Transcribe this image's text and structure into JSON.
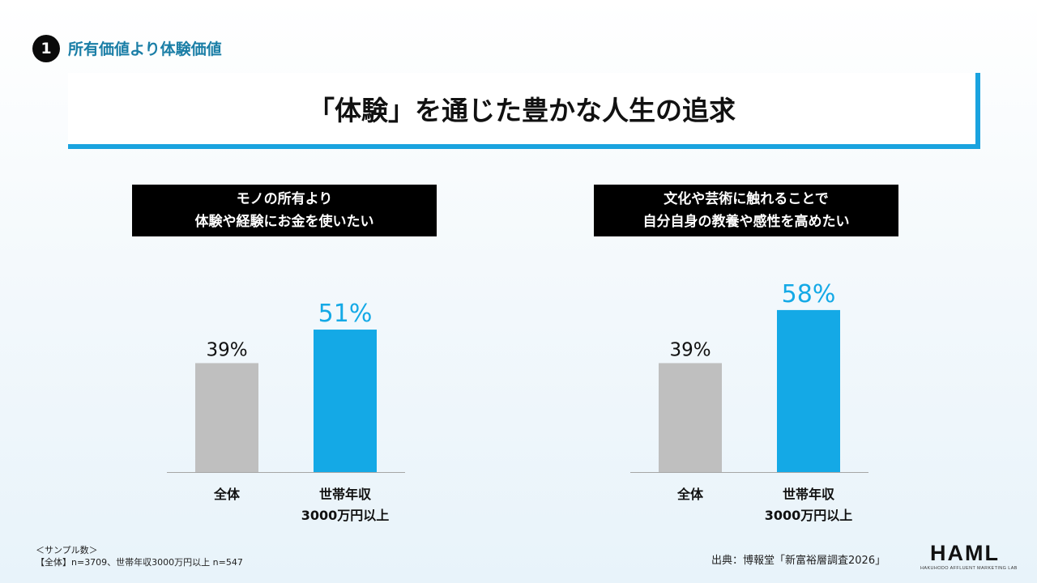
{
  "section": {
    "number": "1",
    "title": "所有価値より体験価値"
  },
  "slide_title": "「体験」を通じた豊かな人生の追求",
  "panels": [
    {
      "header_line1": "モノの所有より",
      "header_line2": "体験や経験にお金を使いたい"
    },
    {
      "header_line1": "文化や芸術に触れることで",
      "header_line2": "自分自身の教養や感性を高めたい"
    }
  ],
  "categories": [
    {
      "line1": "全体",
      "line2": ""
    },
    {
      "line1": "世帯年収",
      "line2": "3000万円以上"
    }
  ],
  "colors": {
    "overall_bar": "#bfbfbf",
    "highlight_bar": "#14a9e6",
    "highlight_label": "#14a9e6",
    "title_accent": "#1aa3df",
    "section_title": "#1a7ea6"
  },
  "chart_data": [
    {
      "type": "bar",
      "categories": [
        "全体",
        "世帯年収3000万円以上"
      ],
      "values": [
        39,
        51
      ],
      "value_labels": [
        "39%",
        "51%"
      ],
      "ylim": [
        0,
        70
      ],
      "grid": false,
      "title": "",
      "xlabel": "",
      "ylabel": ""
    },
    {
      "type": "bar",
      "categories": [
        "全体",
        "世帯年収3000万円以上"
      ],
      "values": [
        39,
        58
      ],
      "value_labels": [
        "39%",
        "58%"
      ],
      "ylim": [
        0,
        70
      ],
      "grid": false,
      "title": "",
      "xlabel": "",
      "ylabel": ""
    }
  ],
  "footer": {
    "sample_line1": "＜サンプル数＞",
    "sample_line2": "【全体】n=3709、世帯年収3000万円以上 n=547",
    "source": "出典：博報堂「新富裕層調査2026」",
    "logo_main": "HAML",
    "logo_sub": "HAKUHODO AFFLUENT MARKETING LAB"
  }
}
